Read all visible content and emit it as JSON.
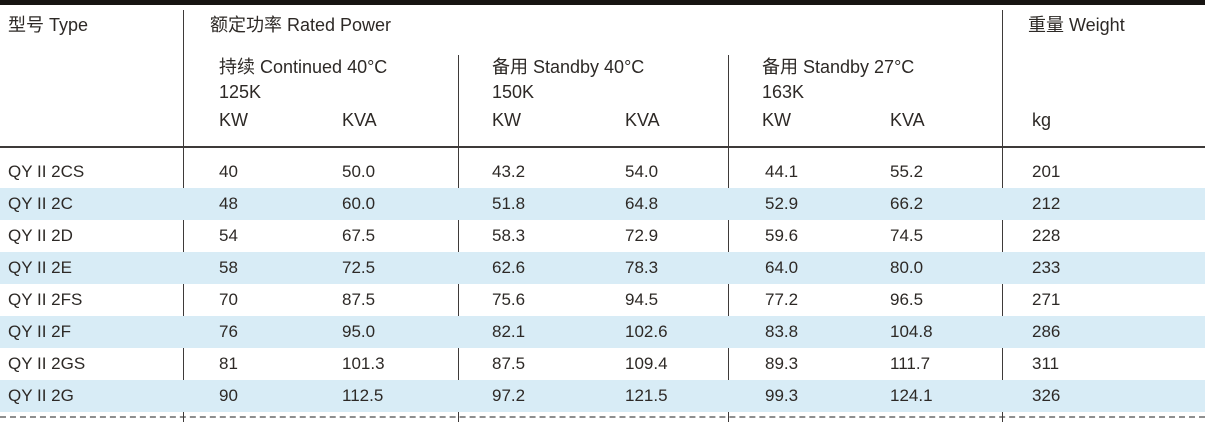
{
  "table": {
    "type_header": "型号 Type",
    "rated_power_header": "额定功率 Rated Power",
    "weight_header": "重量 Weight",
    "weight_unit": "kg",
    "groups": [
      {
        "label": "持续 Continued 40°C",
        "k_rating": "125K",
        "kw_label": "KW",
        "kva_label": "KVA"
      },
      {
        "label": "备用 Standby 40°C",
        "k_rating": "150K",
        "kw_label": "KW",
        "kva_label": "KVA"
      },
      {
        "label": "备用 Standby 27°C",
        "k_rating": "163K",
        "kw_label": "KW",
        "kva_label": "KVA"
      }
    ],
    "rows": [
      {
        "model": "QY II 2CS",
        "continued_kw": "40",
        "continued_kva": "50.0",
        "standby40_kw": "43.2",
        "standby40_kva": "54.0",
        "standby27_kw": "44.1",
        "standby27_kva": "55.2",
        "weight": "201"
      },
      {
        "model": "QY II 2C",
        "continued_kw": "48",
        "continued_kva": "60.0",
        "standby40_kw": "51.8",
        "standby40_kva": "64.8",
        "standby27_kw": "52.9",
        "standby27_kva": "66.2",
        "weight": "212"
      },
      {
        "model": "QY II 2D",
        "continued_kw": "54",
        "continued_kva": "67.5",
        "standby40_kw": "58.3",
        "standby40_kva": "72.9",
        "standby27_kw": "59.6",
        "standby27_kva": "74.5",
        "weight": "228"
      },
      {
        "model": "QY II 2E",
        "continued_kw": "58",
        "continued_kva": "72.5",
        "standby40_kw": "62.6",
        "standby40_kva": "78.3",
        "standby27_kw": "64.0",
        "standby27_kva": "80.0",
        "weight": "233"
      },
      {
        "model": "QY II 2FS",
        "continued_kw": "70",
        "continued_kva": "87.5",
        "standby40_kw": "75.6",
        "standby40_kva": "94.5",
        "standby27_kw": "77.2",
        "standby27_kva": "96.5",
        "weight": "271"
      },
      {
        "model": "QY II 2F",
        "continued_kw": "76",
        "continued_kva": "95.0",
        "standby40_kw": "82.1",
        "standby40_kva": "102.6",
        "standby27_kw": "83.8",
        "standby27_kva": "104.8",
        "weight": "286"
      },
      {
        "model": "QY II 2GS",
        "continued_kw": "81",
        "continued_kva": "101.3",
        "standby40_kw": "87.5",
        "standby40_kva": "109.4",
        "standby27_kw": "89.3",
        "standby27_kva": "111.7",
        "weight": "311"
      },
      {
        "model": "QY II 2G",
        "continued_kw": "90",
        "continued_kva": "112.5",
        "standby40_kw": "97.2",
        "standby40_kva": "121.5",
        "standby27_kw": "99.3",
        "standby27_kva": "124.1",
        "weight": "326"
      }
    ]
  },
  "colors": {
    "text": "#2d2926",
    "line": "#3e3a39",
    "stripe": "#d8ecf6",
    "topbar": "#171412",
    "dash": "#8f8f8f"
  }
}
